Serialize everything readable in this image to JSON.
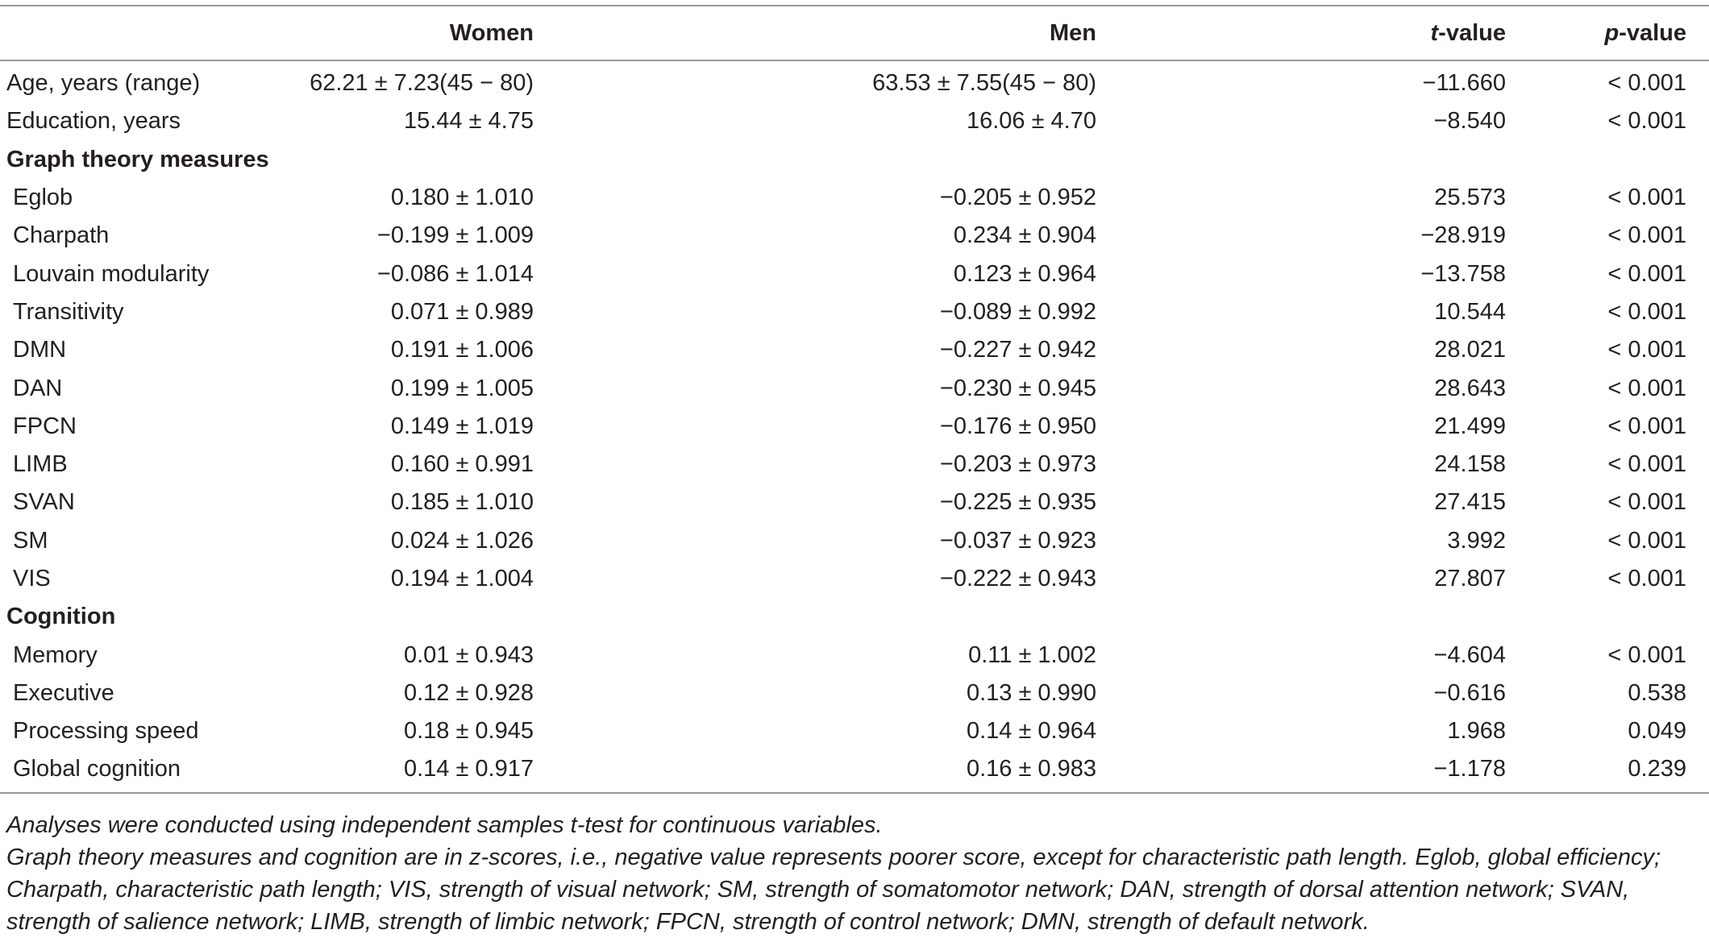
{
  "table": {
    "headers": [
      "",
      "Women",
      "Men",
      "t-value",
      "p-value"
    ],
    "header_suffix": "-value",
    "header_t": "t",
    "header_p": "p",
    "rows": [
      {
        "type": "data",
        "label": "Age, years (range)",
        "women": "62.21 ± 7.23(45 − 80)",
        "men": "63.53 ± 7.55(45 − 80)",
        "t": "−11.660",
        "p": "< 0.001"
      },
      {
        "type": "data",
        "label": "Education, years",
        "women": "15.44 ± 4.75",
        "men": "16.06 ± 4.70",
        "t": "−8.540",
        "p": "< 0.001"
      },
      {
        "type": "section",
        "label": "Graph theory measures"
      },
      {
        "type": "data",
        "indent": true,
        "label": "Eglob",
        "women": "0.180 ± 1.010",
        "men": "−0.205 ± 0.952",
        "t": "25.573",
        "p": "< 0.001"
      },
      {
        "type": "data",
        "indent": true,
        "label": "Charpath",
        "women": "−0.199 ± 1.009",
        "men": "0.234 ± 0.904",
        "t": "−28.919",
        "p": "< 0.001"
      },
      {
        "type": "data",
        "indent": true,
        "label": "Louvain modularity",
        "women": "−0.086 ± 1.014",
        "men": "0.123 ± 0.964",
        "t": "−13.758",
        "p": "< 0.001"
      },
      {
        "type": "data",
        "indent": true,
        "label": "Transitivity",
        "women": "0.071 ± 0.989",
        "men": "−0.089 ± 0.992",
        "t": "10.544",
        "p": "< 0.001"
      },
      {
        "type": "data",
        "indent": true,
        "label": "DMN",
        "women": "0.191 ± 1.006",
        "men": "−0.227 ± 0.942",
        "t": "28.021",
        "p": "< 0.001"
      },
      {
        "type": "data",
        "indent": true,
        "label": "DAN",
        "women": "0.199 ± 1.005",
        "men": "−0.230 ± 0.945",
        "t": "28.643",
        "p": "< 0.001"
      },
      {
        "type": "data",
        "indent": true,
        "label": "FPCN",
        "women": "0.149 ± 1.019",
        "men": "−0.176 ± 0.950",
        "t": "21.499",
        "p": "< 0.001"
      },
      {
        "type": "data",
        "indent": true,
        "label": "LIMB",
        "women": "0.160 ± 0.991",
        "men": "−0.203 ± 0.973",
        "t": "24.158",
        "p": "< 0.001"
      },
      {
        "type": "data",
        "indent": true,
        "label": "SVAN",
        "women": "0.185 ± 1.010",
        "men": "−0.225 ± 0.935",
        "t": "27.415",
        "p": "< 0.001"
      },
      {
        "type": "data",
        "indent": true,
        "label": "SM",
        "women": "0.024 ± 1.026",
        "men": "−0.037 ± 0.923",
        "t": "3.992",
        "p": "< 0.001"
      },
      {
        "type": "data",
        "indent": true,
        "label": "VIS",
        "women": "0.194 ± 1.004",
        "men": "−0.222 ± 0.943",
        "t": "27.807",
        "p": "< 0.001"
      },
      {
        "type": "section",
        "label": "Cognition"
      },
      {
        "type": "data",
        "indent": true,
        "label": "Memory",
        "women": "0.01 ± 0.943",
        "men": "0.11 ± 1.002",
        "t": "−4.604",
        "p": "< 0.001"
      },
      {
        "type": "data",
        "indent": true,
        "label": "Executive",
        "women": "0.12 ± 0.928",
        "men": "0.13 ± 0.990",
        "t": "−0.616",
        "p": "0.538"
      },
      {
        "type": "data",
        "indent": true,
        "label": "Processing speed",
        "women": "0.18 ± 0.945",
        "men": "0.14 ± 0.964",
        "t": "1.968",
        "p": "0.049"
      },
      {
        "type": "data",
        "indent": true,
        "label": "Global cognition",
        "women": "0.14 ± 0.917",
        "men": "0.16 ± 0.983",
        "t": "−1.178",
        "p": "0.239"
      }
    ]
  },
  "notes": {
    "line1": "Analyses were conducted using independent samples t-test for continuous variables.",
    "line2": "Graph theory measures and cognition are in z-scores, i.e., negative value represents poorer score, except for characteristic path length. Eglob, global efficiency; Charpath, characteristic path length; VIS, strength of visual network; SM, strength of somatomotor network; DAN, strength of dorsal attention network; SVAN, strength of salience network; LIMB, strength of limbic network; FPCN, strength of control network; DMN, strength of default network."
  }
}
